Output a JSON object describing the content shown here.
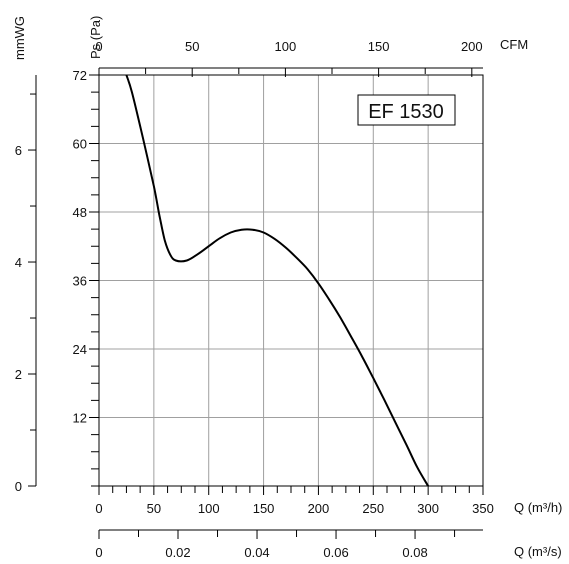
{
  "chart_data": {
    "type": "line",
    "title": "",
    "model_label": "EF 1530",
    "axes": {
      "ps": {
        "label": "Ps (Pa)",
        "range": [
          0,
          72
        ],
        "ticks": [
          12,
          24,
          36,
          48,
          60,
          72
        ],
        "minor_step": 3
      },
      "mmwg": {
        "label": "mmWG",
        "range": [
          0,
          7.34
        ],
        "ticks": [
          0,
          2,
          4,
          6
        ],
        "minor_step": 1
      },
      "q_m3h": {
        "label": "Q (m³/h)",
        "range": [
          0,
          350
        ],
        "ticks": [
          0,
          50,
          100,
          150,
          200,
          250,
          300,
          350
        ],
        "minor_step": 12.5
      },
      "cfm": {
        "label": "CFM",
        "range": [
          0,
          206
        ],
        "ticks": [
          0,
          50,
          100,
          150,
          200
        ],
        "minor_step": 25
      },
      "q_m3s": {
        "label": "Q (m³/s)",
        "range": [
          0,
          0.0972
        ],
        "ticks": [
          "0",
          "0.02",
          "0.04",
          "0.06",
          "0.08"
        ],
        "tick_values": [
          0,
          0.02,
          0.04,
          0.06,
          0.08
        ],
        "minor_step": 0.01
      }
    },
    "grid": true,
    "series": [
      {
        "x": [
          25,
          30,
          40,
          50,
          55,
          60,
          65,
          70,
          80,
          90,
          100,
          110,
          120,
          130,
          140,
          150,
          160,
          170,
          180,
          190,
          200,
          210,
          220,
          230,
          240,
          250,
          260,
          270,
          280,
          290,
          300
        ],
        "values": [
          72,
          69,
          61,
          52.5,
          47.5,
          43,
          40.5,
          39.5,
          39.5,
          40.6,
          42,
          43.4,
          44.4,
          44.9,
          44.9,
          44.4,
          43.3,
          41.8,
          40,
          38,
          35.5,
          32.6,
          29.5,
          26.1,
          22.6,
          18.9,
          15.1,
          11.2,
          7.3,
          3.3,
          0
        ]
      }
    ]
  }
}
